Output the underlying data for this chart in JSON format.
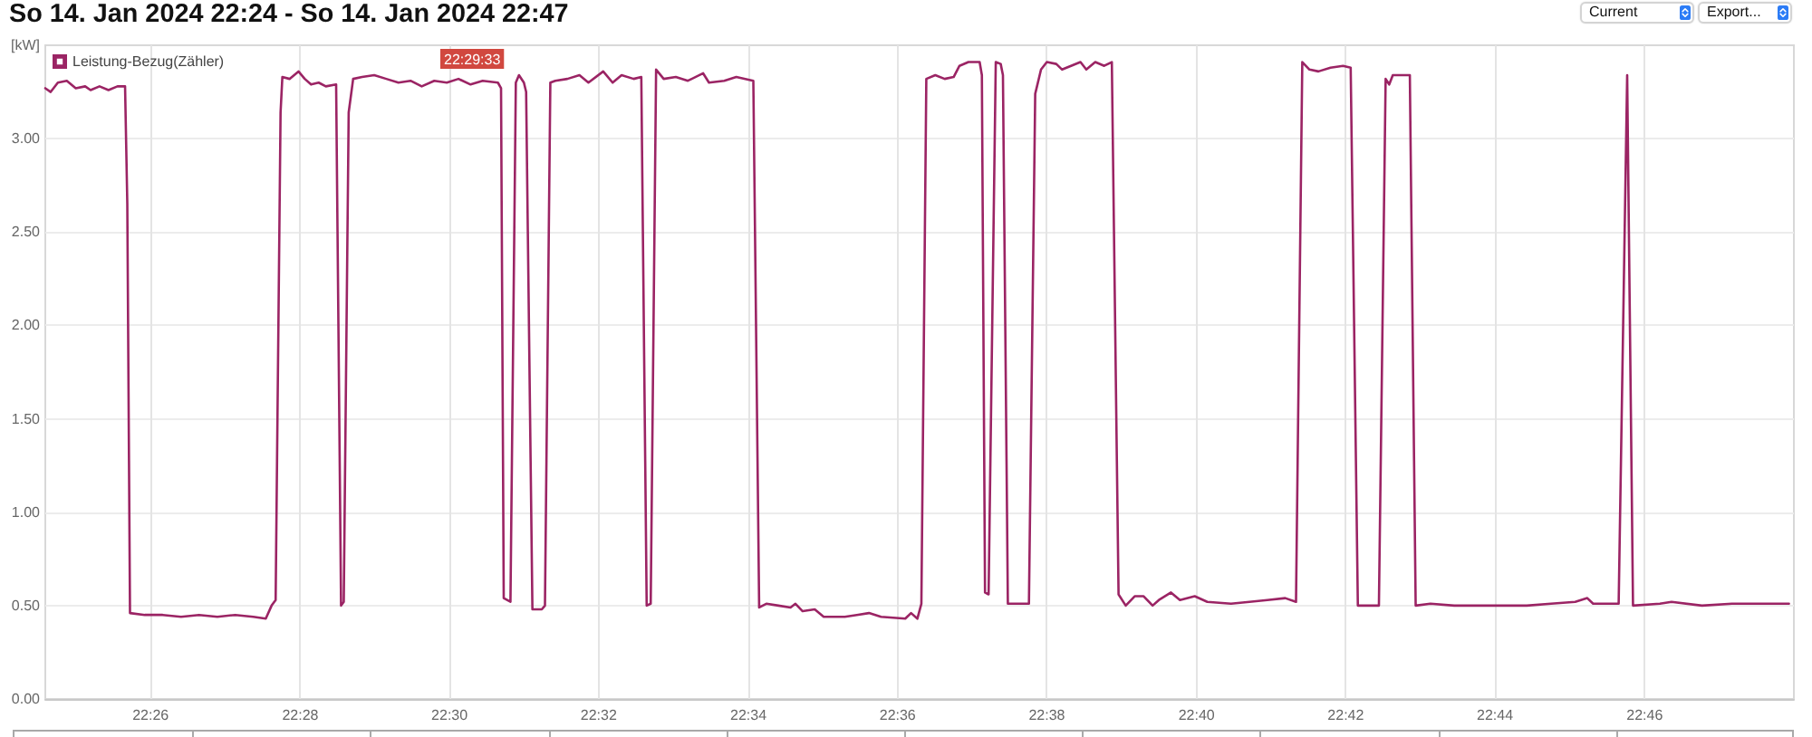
{
  "chart_data": {
    "type": "line",
    "title": "So 14. Jan 2024 22:24 - So 14. Jan 2024 22:47",
    "ylabel": "[kW]",
    "annotations": [
      "22:29:33",
      "Current",
      "Export..."
    ],
    "x": [
      22.4098,
      22.411,
      22.4126,
      22.4146,
      22.4166,
      22.4187,
      22.4199,
      22.4219,
      22.4239,
      22.4259,
      22.4276,
      22.4281,
      22.4287,
      22.432,
      22.436,
      22.4401,
      22.4441,
      22.4482,
      22.4522,
      22.4562,
      22.459,
      22.4603,
      22.4612,
      22.4623,
      22.4627,
      22.4643,
      22.4663,
      22.4677,
      22.4691,
      22.4708,
      22.4724,
      22.4747,
      22.4758,
      22.4764,
      22.4775,
      22.4785,
      22.4805,
      22.4832,
      22.4859,
      22.4886,
      22.4913,
      22.4938,
      22.4966,
      22.4994,
      22.502,
      22.5047,
      22.5074,
      22.5108,
      22.5115,
      22.5121,
      22.5136,
      22.5148,
      22.5155,
      22.5166,
      22.5171,
      22.5185,
      22.5206,
      22.5213,
      22.5225,
      22.5236,
      22.5263,
      22.529,
      22.531,
      22.5343,
      22.5364,
      22.5384,
      22.5411,
      22.5428,
      22.544,
      22.5449,
      22.5461,
      22.5478,
      22.5505,
      22.5532,
      22.5566,
      22.5579,
      22.5613,
      22.564,
      22.5678,
      22.5691,
      22.5707,
      22.5734,
      22.5761,
      22.5772,
      22.5788,
      22.5815,
      22.5835,
      22.5882,
      22.5909,
      22.5936,
      22.5963,
      22.6017,
      22.603,
      22.6044,
      22.6053,
      22.6064,
      22.6084,
      22.6105,
      22.6125,
      22.6138,
      22.6158,
      22.6183,
      22.6188,
      22.6195,
      22.6203,
      22.6219,
      22.623,
      22.6235,
      22.6246,
      22.6293,
      22.6307,
      22.632,
      22.6333,
      22.6354,
      22.6367,
      22.6387,
      22.6408,
      22.6421,
      22.6441,
      22.6461,
      22.6478,
      22.6493,
      22.6509,
      22.6529,
      22.6549,
      22.6569,
      22.6583,
      22.661,
      22.663,
      22.6663,
      22.6691,
      22.6744,
      22.6785,
      22.6825,
      22.6865,
      22.6889,
      22.6903,
      22.6919,
      22.6939,
      22.6966,
      22.6994,
      22.7011,
      22.7027,
      22.7074,
      22.7089,
      22.7097,
      22.7105,
      22.7143,
      22.7156,
      22.7189,
      22.7242,
      22.7323,
      22.7404,
      22.7458,
      22.7512,
      22.7539,
      22.7552,
      22.7609,
      22.7628,
      22.7641,
      22.7701,
      22.7727,
      22.7795,
      22.7862,
      22.7916,
      22.7989
    ],
    "series": [
      {
        "name": "Leistung-Bezug(Zähler)",
        "color": "#9b2464",
        "values": [
          3.27,
          3.25,
          3.3,
          3.31,
          3.27,
          3.28,
          3.26,
          3.28,
          3.26,
          3.28,
          3.28,
          2.65,
          0.46,
          0.45,
          0.45,
          0.44,
          0.45,
          0.44,
          0.45,
          0.44,
          0.43,
          0.5,
          0.53,
          3.14,
          3.33,
          3.32,
          3.36,
          3.32,
          3.29,
          3.3,
          3.28,
          3.29,
          0.5,
          0.52,
          3.14,
          3.32,
          3.33,
          3.34,
          3.32,
          3.3,
          3.31,
          3.28,
          3.31,
          3.3,
          3.32,
          3.29,
          3.31,
          3.3,
          3.27,
          0.54,
          0.52,
          3.3,
          3.34,
          3.3,
          3.25,
          0.48,
          0.48,
          0.5,
          3.3,
          3.31,
          3.32,
          3.34,
          3.3,
          3.36,
          3.3,
          3.34,
          3.32,
          3.33,
          0.5,
          0.51,
          3.37,
          3.32,
          3.33,
          3.31,
          3.35,
          3.3,
          3.31,
          3.33,
          3.31,
          0.49,
          0.51,
          0.5,
          0.49,
          0.51,
          0.47,
          0.48,
          0.44,
          0.44,
          0.45,
          0.46,
          0.44,
          0.43,
          0.46,
          0.43,
          0.51,
          3.32,
          3.34,
          3.32,
          3.33,
          3.39,
          3.41,
          3.41,
          3.34,
          0.57,
          0.56,
          3.41,
          3.4,
          3.34,
          0.51,
          0.51,
          3.24,
          3.37,
          3.41,
          3.4,
          3.37,
          3.39,
          3.41,
          3.37,
          3.41,
          3.39,
          3.41,
          0.56,
          0.5,
          0.55,
          0.55,
          0.5,
          0.53,
          0.57,
          0.53,
          0.55,
          0.52,
          0.51,
          0.52,
          0.53,
          0.54,
          0.52,
          3.41,
          3.37,
          3.36,
          3.38,
          3.39,
          3.38,
          0.5,
          0.5,
          3.32,
          3.29,
          3.34,
          3.34,
          0.5,
          0.51,
          0.5,
          0.5,
          0.5,
          0.51,
          0.52,
          0.54,
          0.51,
          0.51,
          3.34,
          0.5,
          0.51,
          0.52,
          0.5,
          0.51,
          0.51,
          0.51
        ]
      }
    ],
    "xlim": [
      22.4098,
      22.8
    ],
    "xticks": [
      {
        "value": 22.4333,
        "label": "22:26"
      },
      {
        "value": 22.4667,
        "label": "22:28"
      },
      {
        "value": 22.5,
        "label": "22:30"
      },
      {
        "value": 22.5333,
        "label": "22:32"
      },
      {
        "value": 22.5667,
        "label": "22:34"
      },
      {
        "value": 22.6,
        "label": "22:36"
      },
      {
        "value": 22.6333,
        "label": "22:38"
      },
      {
        "value": 22.6667,
        "label": "22:40"
      },
      {
        "value": 22.7,
        "label": "22:42"
      },
      {
        "value": 22.7333,
        "label": "22:44"
      },
      {
        "value": 22.7667,
        "label": "22:46"
      }
    ],
    "ylim": [
      0,
      3.5
    ],
    "yticks": [
      {
        "value": 0,
        "label": "0.00"
      },
      {
        "value": 0.5,
        "label": "0.50"
      },
      {
        "value": 1,
        "label": "1.00"
      },
      {
        "value": 1.5,
        "label": "1.50"
      },
      {
        "value": 2,
        "label": "2.00"
      },
      {
        "value": 2.5,
        "label": "2.50"
      },
      {
        "value": 3,
        "label": "3.00"
      }
    ],
    "grid": true,
    "legend": "top left",
    "line_style": "solid"
  }
}
